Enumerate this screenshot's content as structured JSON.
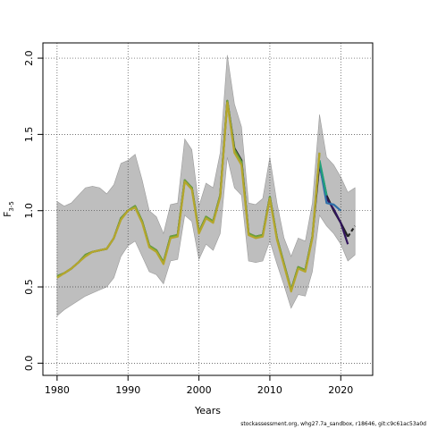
{
  "chart_data": {
    "type": "line",
    "xlabel": "Years",
    "ylabel_main": "F",
    "ylabel_sub": "3-5",
    "xlim": [
      1978,
      2024.5
    ],
    "ylim": [
      -0.08,
      2.1
    ],
    "x_ticks": [
      1980,
      1990,
      2000,
      2010,
      2020
    ],
    "y_ticks": [
      0.0,
      0.5,
      1.0,
      1.5,
      2.0
    ],
    "y_tick_labels": [
      "0.0",
      "0.5",
      "1.0",
      "1.5",
      "2.0"
    ],
    "grid": true,
    "grid_style": "dotted",
    "band": {
      "x": [
        1980,
        1981,
        1982,
        1983,
        1984,
        1985,
        1986,
        1987,
        1988,
        1989,
        1990,
        1991,
        1992,
        1993,
        1994,
        1995,
        1996,
        1997,
        1998,
        1999,
        2000,
        2001,
        2002,
        2003,
        2004,
        2005,
        2006,
        2007,
        2008,
        2009,
        2010,
        2011,
        2012,
        2013,
        2014,
        2015,
        2016,
        2017,
        2018,
        2019,
        2020,
        2021,
        2022
      ],
      "lower": [
        0.31,
        0.35,
        0.38,
        0.41,
        0.44,
        0.46,
        0.48,
        0.5,
        0.56,
        0.7,
        0.77,
        0.8,
        0.7,
        0.6,
        0.58,
        0.52,
        0.67,
        0.68,
        0.97,
        0.93,
        0.68,
        0.78,
        0.74,
        0.85,
        1.35,
        1.15,
        1.1,
        0.67,
        0.66,
        0.67,
        0.8,
        0.65,
        0.51,
        0.36,
        0.45,
        0.44,
        0.6,
        0.97,
        0.9,
        0.85,
        0.78,
        0.67,
        0.71
      ],
      "upper": [
        1.06,
        1.03,
        1.05,
        1.1,
        1.15,
        1.16,
        1.15,
        1.11,
        1.17,
        1.31,
        1.33,
        1.37,
        1.2,
        1.0,
        0.96,
        0.85,
        1.04,
        1.05,
        1.47,
        1.4,
        1.03,
        1.18,
        1.15,
        1.38,
        2.02,
        1.7,
        1.55,
        1.05,
        1.04,
        1.08,
        1.35,
        1.05,
        0.82,
        0.7,
        0.82,
        0.8,
        1.05,
        1.63,
        1.35,
        1.3,
        1.22,
        1.12,
        1.15
      ]
    },
    "series": [
      {
        "color": "#222222",
        "x": [
          1980,
          1981,
          1982,
          1983,
          1984,
          1985,
          1986,
          1987,
          1988,
          1989,
          1990,
          1991,
          1992,
          1993,
          1994,
          1995,
          1996,
          1997,
          1998,
          1999,
          2000,
          2001,
          2002,
          2003,
          2004,
          2005,
          2006,
          2007,
          2008,
          2009,
          2010,
          2011,
          2012,
          2013,
          2014,
          2015,
          2016,
          2017,
          2018,
          2019,
          2020,
          2021,
          2022
        ],
        "y": [
          0.57,
          0.59,
          0.62,
          0.66,
          0.71,
          0.73,
          0.74,
          0.75,
          0.82,
          0.95,
          1.0,
          1.03,
          0.93,
          0.77,
          0.74,
          0.66,
          0.83,
          0.84,
          1.2,
          1.15,
          0.86,
          0.96,
          0.93,
          1.1,
          1.72,
          1.41,
          1.33,
          0.85,
          0.83,
          0.84,
          1.09,
          0.82,
          0.65,
          0.48,
          0.63,
          0.61,
          0.83,
          1.32,
          1.1,
          1.0,
          0.92,
          0.83,
          0.9
        ],
        "dashed_from": 2021
      },
      {
        "color": "#31145c",
        "x": [
          2017,
          2018,
          2019,
          2020,
          2021
        ],
        "y": [
          1.3,
          1.08,
          1.01,
          0.92,
          0.78
        ]
      },
      {
        "color": "#2f6fa8",
        "x": [
          2017,
          2018,
          2019,
          2020
        ],
        "y": [
          1.31,
          1.05,
          1.04,
          1.0
        ]
      },
      {
        "color": "#21a07a",
        "x": [
          2017,
          2018
        ],
        "y": [
          1.33,
          1.1
        ]
      },
      {
        "color": "#6aa33a",
        "x": [
          1980,
          1981,
          1982,
          1983,
          1984,
          1985,
          1986,
          1987,
          1988,
          1989,
          1990,
          1991,
          1992,
          1993,
          1994,
          1995,
          1996,
          1997,
          1998,
          1999,
          2000,
          2001,
          2002,
          2003,
          2004,
          2005,
          2006,
          2007,
          2008,
          2009,
          2010,
          2011,
          2012,
          2013,
          2014,
          2015,
          2016,
          2017
        ],
        "y": [
          0.57,
          0.59,
          0.62,
          0.66,
          0.71,
          0.73,
          0.74,
          0.75,
          0.82,
          0.95,
          1.0,
          1.03,
          0.93,
          0.77,
          0.74,
          0.66,
          0.83,
          0.84,
          1.2,
          1.15,
          0.86,
          0.96,
          0.93,
          1.1,
          1.72,
          1.4,
          1.32,
          0.85,
          0.83,
          0.84,
          1.09,
          0.82,
          0.65,
          0.48,
          0.63,
          0.61,
          0.83,
          1.38
        ]
      },
      {
        "color": "#b5a62c",
        "x": [
          1980,
          1981,
          1982,
          1983,
          1984,
          1985,
          1986,
          1987,
          1988,
          1989,
          1990,
          1991,
          1992,
          1993,
          1994,
          1995,
          1996,
          1997,
          1998,
          1999,
          2000,
          2001,
          2002,
          2003,
          2004,
          2005,
          2006,
          2007,
          2008,
          2009,
          2010,
          2011,
          2012,
          2013,
          2014,
          2015,
          2016,
          2017
        ],
        "y": [
          0.56,
          0.59,
          0.62,
          0.66,
          0.7,
          0.73,
          0.74,
          0.75,
          0.82,
          0.94,
          1.0,
          1.02,
          0.92,
          0.76,
          0.73,
          0.65,
          0.82,
          0.83,
          1.19,
          1.14,
          0.85,
          0.95,
          0.92,
          1.09,
          1.71,
          1.38,
          1.3,
          0.84,
          0.82,
          0.83,
          1.08,
          0.81,
          0.64,
          0.47,
          0.62,
          0.6,
          0.82,
          1.38
        ]
      }
    ],
    "footer": "stockassessment.org, whg27.7a_sandbox, r18646, git:c9c61ac53a0d"
  }
}
